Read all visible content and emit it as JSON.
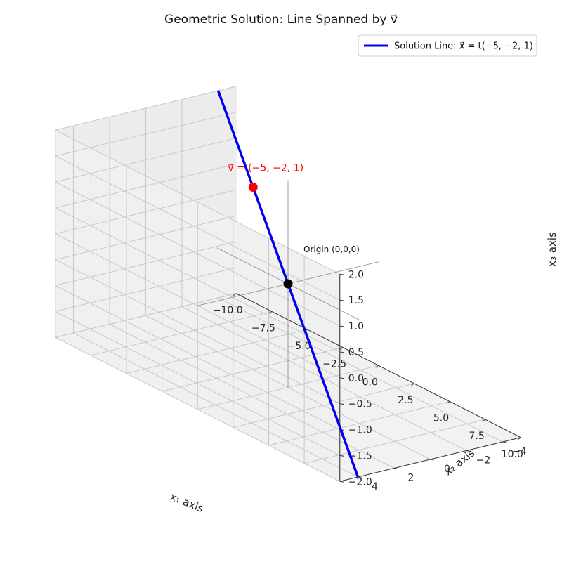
{
  "chart_data": {
    "type": "line",
    "projection": "3d",
    "title": "Geometric Solution: Line Spanned by v⃗",
    "axes": {
      "x1": {
        "label": "x₁ axis",
        "range": [
          -10,
          10
        ],
        "ticks": [
          -10,
          -7.5,
          -5,
          -2.5,
          0,
          2.5,
          5,
          7.5,
          10
        ],
        "tick_labels": [
          "−10.0",
          "−7.5",
          "−5.0",
          "−2.5",
          "0.0",
          "2.5",
          "5.0",
          "7.5",
          "10.0"
        ]
      },
      "x2": {
        "label": "x₂ axis",
        "range": [
          -5,
          5
        ],
        "ticks": [
          -4,
          -2,
          0,
          2,
          4
        ],
        "tick_labels": [
          "−4",
          "−2",
          "0",
          "2",
          "4"
        ]
      },
      "x3": {
        "label": "x₃ axis",
        "range": [
          -2,
          2
        ],
        "ticks": [
          -2,
          -1.5,
          -1,
          -0.5,
          0,
          0.5,
          1,
          1.5,
          2
        ],
        "tick_labels": [
          "−2.0",
          "−1.5",
          "−1.0",
          "−0.5",
          "0.0",
          "0.5",
          "1.0",
          "1.5",
          "2.0"
        ]
      }
    },
    "grid": true,
    "legend": {
      "position": "top-right"
    },
    "series": [
      {
        "name": "Solution Line: x⃗ = t(−5, −2, 1)",
        "color": "#0000ee",
        "x1": [
          -10,
          10
        ],
        "x2": [
          -4,
          4
        ],
        "x3": [
          2,
          -2
        ],
        "direction": [
          -5,
          -2,
          1
        ]
      }
    ],
    "points": [
      {
        "label": "v⃗ = (−5, −2, 1)",
        "coords": [
          -5,
          -2,
          1
        ],
        "color": "#ff0000"
      },
      {
        "label": "Origin (0,0,0)",
        "coords": [
          0,
          0,
          0
        ],
        "color": "#000000"
      }
    ],
    "reference_axes": {
      "color": "#808080",
      "x1": [
        -5,
        5
      ],
      "x2": [
        -5,
        5
      ],
      "x3": [
        -2,
        2
      ]
    }
  }
}
